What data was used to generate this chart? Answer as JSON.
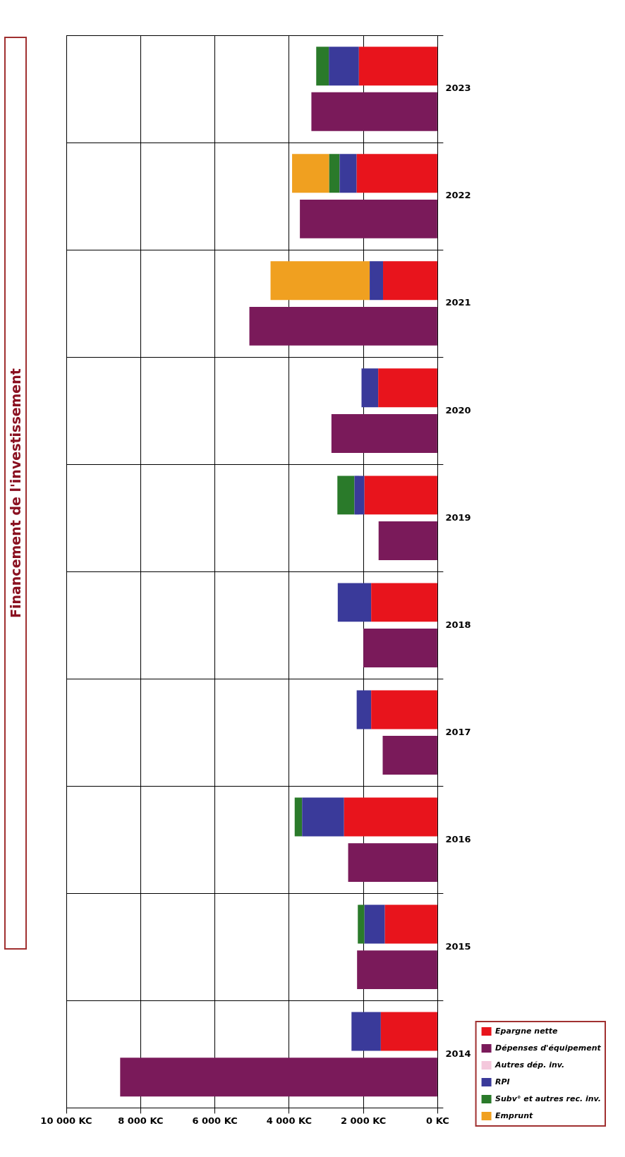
{
  "chart_data": {
    "type": "bar",
    "title": "Financement de l'investissement",
    "orientation": "horizontal",
    "categories": [
      "2023",
      "2022",
      "2021",
      "2020",
      "2019",
      "2018",
      "2017",
      "2016",
      "2015",
      "2014"
    ],
    "series": [
      {
        "name": "Epargne nette",
        "color": "#e8141c",
        "base": [
          0,
          0,
          0,
          0,
          0,
          0,
          0,
          0,
          0,
          0
        ],
        "values": [
          2120,
          2180,
          1470,
          1600,
          1970,
          1790,
          1790,
          2520,
          1420,
          1530
        ]
      },
      {
        "name": "Dépenses d'équipement",
        "color": "#7a1a5a",
        "values": [
          3400,
          3710,
          5070,
          2860,
          1590,
          2000,
          1480,
          2410,
          2170,
          8550
        ]
      },
      {
        "name": "Autres dép. inv.",
        "color": "#f4c8dc",
        "values": [
          null,
          null,
          null,
          null,
          null,
          null,
          null,
          null,
          null,
          null
        ]
      },
      {
        "name": "RPI",
        "color": "#3a3a9a",
        "base": [
          2120,
          2180,
          1470,
          1600,
          1970,
          1790,
          1790,
          2520,
          1420,
          1530
        ],
        "values": [
          810,
          460,
          360,
          450,
          270,
          900,
          390,
          1130,
          550,
          790
        ]
      },
      {
        "name": "Subv° et autres rec. inv.",
        "color": "#2a7a2a",
        "base": [
          2930,
          2640,
          null,
          null,
          2240,
          null,
          null,
          3650,
          1970,
          null
        ],
        "values": [
          340,
          280,
          null,
          null,
          460,
          null,
          null,
          200,
          180,
          null
        ]
      },
      {
        "name": "Emprunt",
        "color": "#f0a020",
        "base": [
          null,
          2920,
          1830,
          null,
          null,
          null,
          null,
          null,
          null,
          null
        ],
        "values": [
          null,
          1000,
          2670,
          null,
          null,
          null,
          null,
          null,
          null,
          null
        ]
      }
    ],
    "xlim": [
      10000,
      0
    ],
    "xticks": [
      {
        "value": 0,
        "label": "0 KC"
      },
      {
        "value": 2000,
        "label": "2 000 KC"
      },
      {
        "value": 4000,
        "label": "4 000 KC"
      },
      {
        "value": 6000,
        "label": "6 000 KC"
      },
      {
        "value": 8000,
        "label": "8 000 KC"
      },
      {
        "value": 10000,
        "label": "10 000 KC"
      }
    ],
    "grid": true,
    "legend": "right"
  }
}
